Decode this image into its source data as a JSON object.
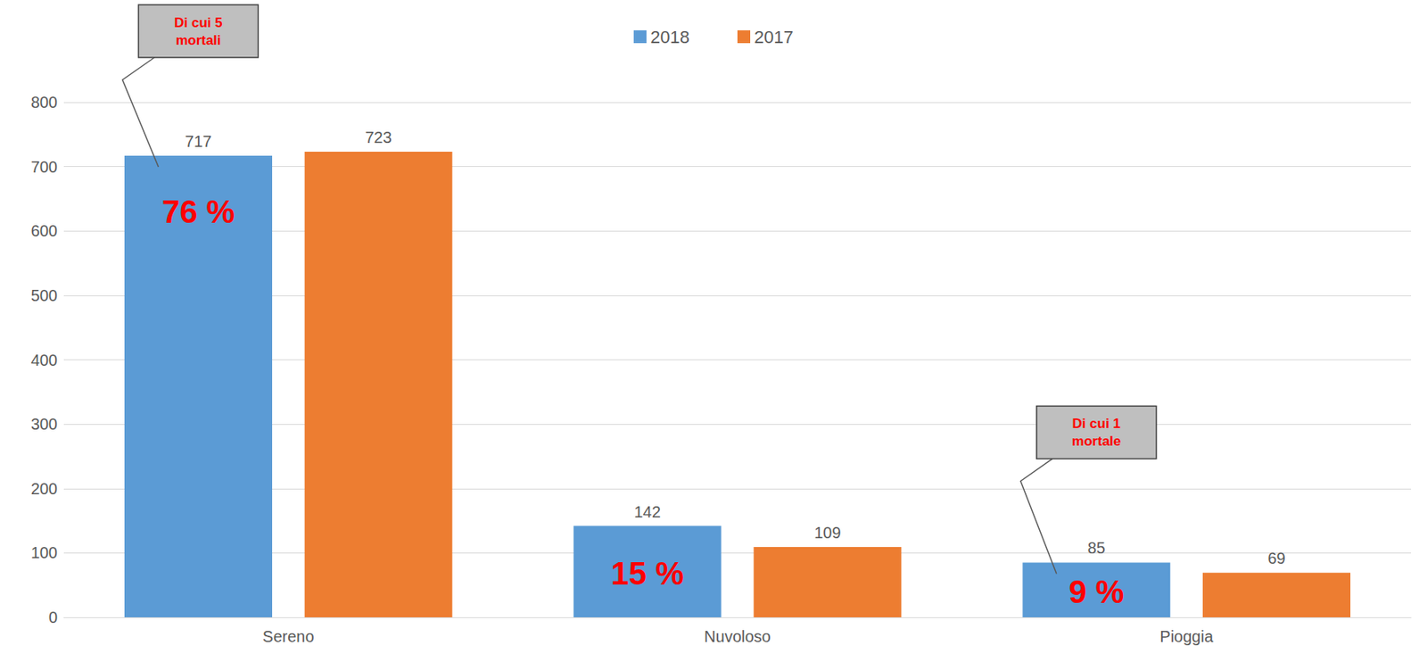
{
  "chart_data": {
    "type": "bar",
    "categories": [
      "Sereno",
      "Nuvoloso",
      "Pioggia"
    ],
    "series": [
      {
        "name": "2018",
        "color": "#5b9bd5",
        "values": [
          717,
          142,
          85
        ]
      },
      {
        "name": "2017",
        "color": "#ed7d31",
        "values": [
          723,
          109,
          69
        ]
      }
    ],
    "ylim": [
      0,
      800
    ],
    "yticks": [
      0,
      100,
      200,
      300,
      400,
      500,
      600,
      700,
      800
    ],
    "grid": true,
    "legend": "top",
    "data_labels": true,
    "annotations": [
      {
        "text": "76 %",
        "category": "Sereno",
        "series": "2018"
      },
      {
        "text": "15 %",
        "category": "Nuvoloso",
        "series": "2018"
      },
      {
        "text": "9 %",
        "category": "Pioggia",
        "series": "2018"
      }
    ],
    "callouts": [
      {
        "text": "Di cui 5 mortali",
        "category": "Sereno",
        "series": "2018"
      },
      {
        "text": "Di cui 1 mortale",
        "category": "Pioggia",
        "series": "2018"
      }
    ]
  }
}
